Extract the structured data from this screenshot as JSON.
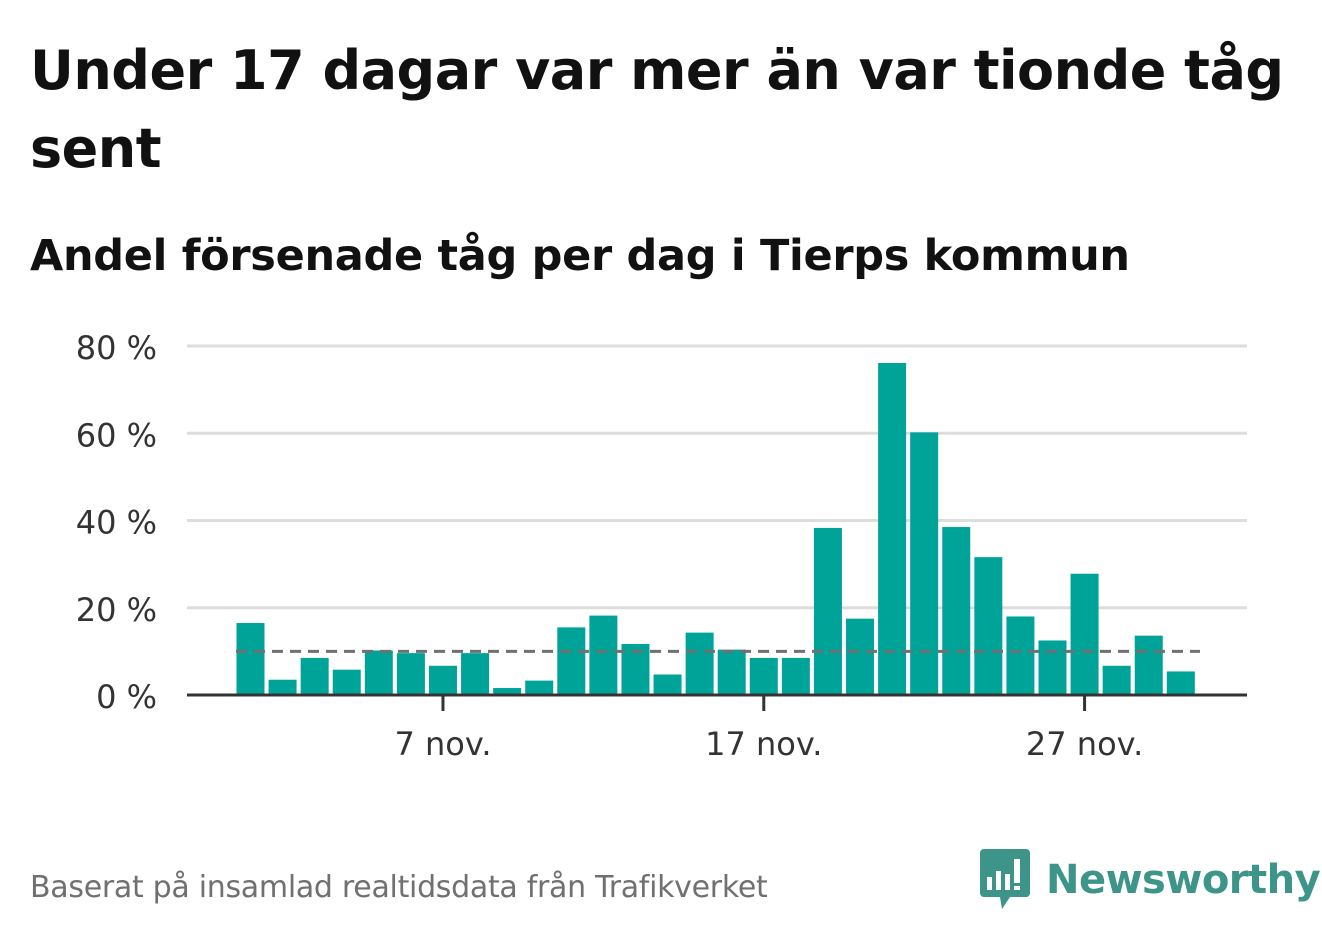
{
  "header": {
    "title": "Under 17 dagar var mer än var tionde tåg sent",
    "subtitle": "Andel försenade tåg per dag i Tierps kommun"
  },
  "footer": {
    "source": "Baserat på insamlad realtidsdata från Trafikverket",
    "brand": "Newsworthy",
    "brand_icon": "bar-chart-speech-bubble-icon"
  },
  "colors": {
    "bar": "#00a398",
    "reference_line": "#707070",
    "grid": "#dddddd",
    "axis": "#333333",
    "brand": "#3d9488"
  },
  "chart_data": {
    "type": "bar",
    "x": [
      "1 nov.",
      "2 nov.",
      "3 nov.",
      "4 nov.",
      "5 nov.",
      "6 nov.",
      "7 nov.",
      "8 nov.",
      "9 nov.",
      "10 nov.",
      "11 nov.",
      "12 nov.",
      "13 nov.",
      "14 nov.",
      "15 nov.",
      "16 nov.",
      "17 nov.",
      "18 nov.",
      "19 nov.",
      "20 nov.",
      "21 nov.",
      "22 nov.",
      "23 nov.",
      "24 nov.",
      "25 nov.",
      "26 nov.",
      "27 nov.",
      "28 nov.",
      "29 nov.",
      "30 nov."
    ],
    "values": [
      16.5,
      3.5,
      8.5,
      5.8,
      10.2,
      9.6,
      6.7,
      9.6,
      1.6,
      3.3,
      15.5,
      18.2,
      11.7,
      4.7,
      14.3,
      10.4,
      8.5,
      8.5,
      38.3,
      17.5,
      76.1,
      60.2,
      38.5,
      31.6,
      18.0,
      12.5,
      27.8,
      6.7,
      13.6,
      5.4
    ],
    "reference_value": 10,
    "x_ticks": [
      {
        "x": "7 nov.",
        "label": "7 nov."
      },
      {
        "x": "17 nov.",
        "label": "17 nov."
      },
      {
        "x": "27 nov.",
        "label": "27 nov."
      }
    ],
    "y_ticks": [
      {
        "value": 0,
        "label": "0 %"
      },
      {
        "value": 20,
        "label": "20 %"
      },
      {
        "value": 40,
        "label": "40 %"
      },
      {
        "value": 60,
        "label": "60 %"
      },
      {
        "value": 80,
        "label": "80 %"
      }
    ],
    "ylim": [
      0,
      80
    ],
    "grid": true,
    "legend": "none"
  }
}
